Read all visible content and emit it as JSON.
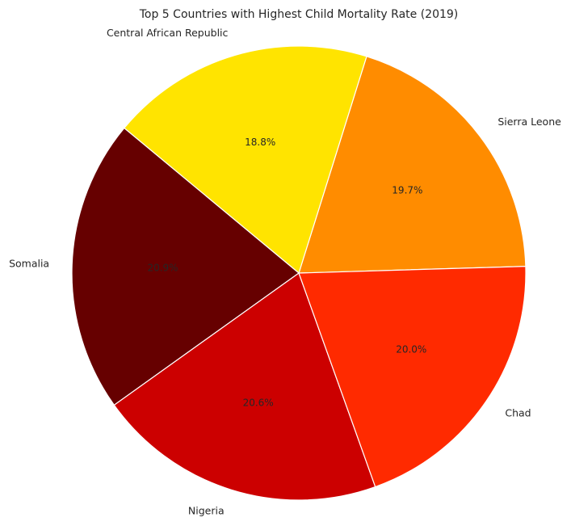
{
  "chart_data": {
    "type": "pie",
    "title": "Top 5 Countries with Highest Child Mortality Rate (2019)",
    "categories": [
      "Sierra Leone",
      "Central African Republic",
      "Somalia",
      "Nigeria",
      "Chad"
    ],
    "values": [
      19.7,
      18.8,
      20.9,
      20.6,
      20.0
    ],
    "value_labels": [
      "19.7%",
      "18.8%",
      "20.9%",
      "20.6%",
      "20.0%"
    ],
    "colors": [
      "#ff8c00",
      "#ffe400",
      "#660000",
      "#cc0000",
      "#ff2a00"
    ],
    "start_angle_deg": 1.7,
    "direction": "counterclockwise",
    "legend": "none"
  }
}
